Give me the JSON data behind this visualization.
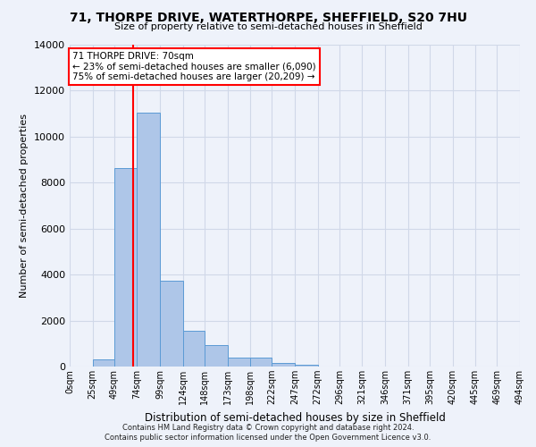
{
  "title": "71, THORPE DRIVE, WATERTHORPE, SHEFFIELD, S20 7HU",
  "subtitle": "Size of property relative to semi-detached houses in Sheffield",
  "xlabel": "Distribution of semi-detached houses by size in Sheffield",
  "ylabel": "Number of semi-detached properties",
  "footer_line1": "Contains HM Land Registry data © Crown copyright and database right 2024.",
  "footer_line2": "Contains public sector information licensed under the Open Government Licence v3.0.",
  "bin_labels": [
    "0sqm",
    "25sqm",
    "49sqm",
    "74sqm",
    "99sqm",
    "124sqm",
    "148sqm",
    "173sqm",
    "198sqm",
    "222sqm",
    "247sqm",
    "272sqm",
    "296sqm",
    "321sqm",
    "346sqm",
    "371sqm",
    "395sqm",
    "420sqm",
    "445sqm",
    "469sqm",
    "494sqm"
  ],
  "bar_values": [
    0,
    300,
    8650,
    11050,
    3750,
    1550,
    950,
    400,
    380,
    160,
    60,
    0,
    0,
    0,
    0,
    0,
    0,
    0,
    0,
    0
  ],
  "bar_color": "#aec6e8",
  "bar_edge_color": "#5b9bd5",
  "grid_color": "#d0d8e8",
  "property_line_x": 70,
  "vline_color": "red",
  "annotation_text": "71 THORPE DRIVE: 70sqm\n← 23% of semi-detached houses are smaller (6,090)\n75% of semi-detached houses are larger (20,209) →",
  "annotation_box_color": "white",
  "annotation_box_edge_color": "red",
  "ylim": [
    0,
    14000
  ],
  "yticks": [
    0,
    2000,
    4000,
    6000,
    8000,
    10000,
    12000,
    14000
  ],
  "bin_edges": [
    0,
    25,
    49,
    74,
    99,
    124,
    148,
    173,
    198,
    222,
    247,
    272,
    296,
    321,
    346,
    371,
    395,
    420,
    445,
    469,
    494
  ],
  "bg_color": "#eef2fa"
}
